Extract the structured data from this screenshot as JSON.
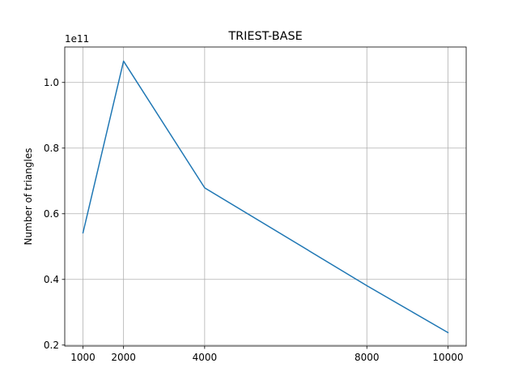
{
  "chart_data": {
    "type": "line",
    "title": "TRIEST-BASE",
    "xlabel": "",
    "ylabel": "Number of triangles",
    "y_offset_label": "1e11",
    "x": [
      1000,
      2000,
      4000,
      8000,
      10000
    ],
    "x_ticks": [
      1000,
      2000,
      4000,
      8000,
      10000
    ],
    "x_tick_labels": [
      "1000",
      "2000",
      "4000",
      "8000",
      "10000"
    ],
    "y_ticks": [
      0.2,
      0.4,
      0.6,
      0.8,
      1.0
    ],
    "y_tick_labels": [
      "0.2",
      "0.4",
      "0.6",
      "0.8",
      "1.0"
    ],
    "xlim": [
      550,
      10450
    ],
    "ylim": [
      0.197,
      1.108
    ],
    "grid": true,
    "series": [
      {
        "values": [
          0.542,
          1.065,
          0.679,
          0.381,
          0.238
        ],
        "color": "#1f77b4"
      }
    ]
  }
}
